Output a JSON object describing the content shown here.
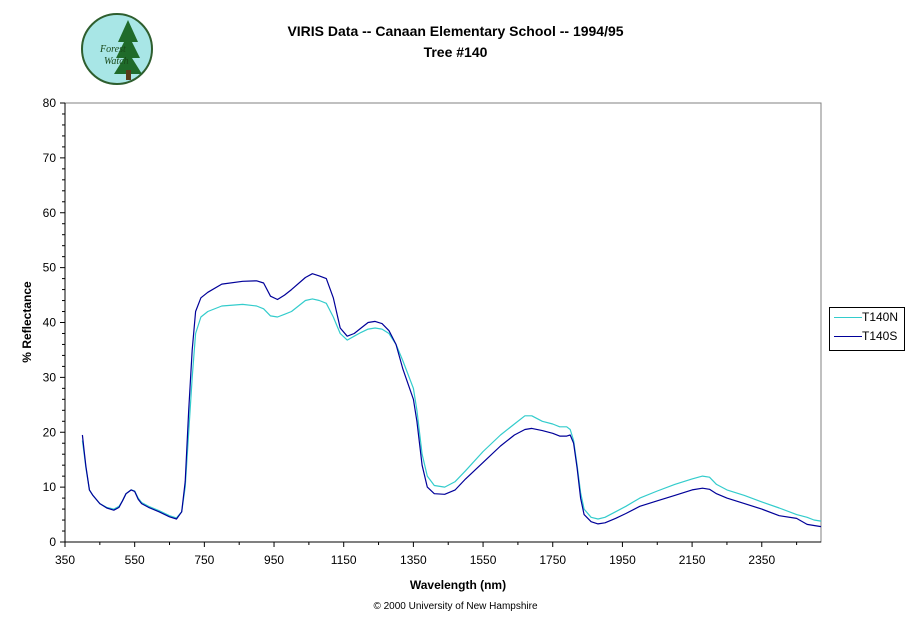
{
  "logo": {
    "text_line1": "Forest",
    "text_line2": "Watch"
  },
  "copyright": "© 2000 University of New Hampshire",
  "colors": {
    "T140N": "#33cccc",
    "T140S": "#000099"
  },
  "chart_data": {
    "type": "line",
    "title": "VIRIS Data -- Canaan Elementary School -- 1994/95",
    "subtitle": "Tree #140",
    "xlabel": "Wavelength (nm)",
    "ylabel": "% Reflectance",
    "xlim": [
      350,
      2520
    ],
    "ylim": [
      0,
      80
    ],
    "xticks": [
      350,
      550,
      750,
      950,
      1150,
      1350,
      1550,
      1750,
      1950,
      2150,
      2350
    ],
    "yticks": [
      0,
      10,
      20,
      30,
      40,
      50,
      60,
      70,
      80
    ],
    "grid": false,
    "legend_position": "right",
    "series": [
      {
        "name": "T140N",
        "x": [
          400,
          405,
          410,
          420,
          430,
          450,
          470,
          490,
          505,
          515,
          525,
          540,
          550,
          560,
          570,
          590,
          620,
          650,
          670,
          685,
          695,
          705,
          715,
          725,
          740,
          760,
          800,
          860,
          900,
          920,
          940,
          960,
          980,
          1000,
          1040,
          1060,
          1080,
          1100,
          1120,
          1140,
          1160,
          1180,
          1200,
          1220,
          1240,
          1260,
          1280,
          1300,
          1320,
          1350,
          1360,
          1375,
          1390,
          1410,
          1440,
          1470,
          1500,
          1550,
          1600,
          1640,
          1670,
          1690,
          1720,
          1750,
          1770,
          1790,
          1800,
          1810,
          1820,
          1830,
          1840,
          1860,
          1880,
          1900,
          1930,
          1960,
          2000,
          2050,
          2100,
          2150,
          2180,
          2200,
          2220,
          2250,
          2300,
          2350,
          2400,
          2450,
          2480,
          2500,
          2520
        ],
        "y": [
          18.5,
          16.0,
          13.5,
          9.5,
          8.5,
          7.0,
          6.3,
          6.0,
          6.5,
          7.5,
          8.8,
          9.5,
          9.3,
          8.0,
          7.2,
          6.5,
          5.7,
          4.8,
          4.4,
          5.5,
          10.0,
          20.0,
          30.0,
          38.0,
          41.0,
          42.0,
          43.0,
          43.3,
          43.0,
          42.5,
          41.2,
          41.0,
          41.5,
          42.0,
          44.0,
          44.3,
          44.0,
          43.5,
          41.0,
          38.0,
          36.8,
          37.5,
          38.2,
          38.8,
          39.0,
          38.8,
          38.0,
          36.0,
          33.0,
          28.0,
          24.0,
          16.0,
          12.0,
          10.3,
          10.0,
          11.0,
          13.0,
          16.5,
          19.5,
          21.5,
          23.0,
          23.0,
          22.0,
          21.5,
          21.0,
          21.0,
          20.5,
          18.5,
          14.0,
          9.0,
          6.0,
          4.5,
          4.2,
          4.5,
          5.5,
          6.5,
          8.0,
          9.3,
          10.5,
          11.5,
          12.0,
          11.8,
          10.5,
          9.5,
          8.5,
          7.3,
          6.2,
          5.0,
          4.5,
          4.0,
          3.8
        ]
      },
      {
        "name": "T140S",
        "x": [
          400,
          405,
          410,
          420,
          430,
          450,
          470,
          490,
          505,
          515,
          525,
          540,
          550,
          560,
          570,
          590,
          620,
          650,
          670,
          685,
          695,
          705,
          715,
          725,
          740,
          760,
          800,
          860,
          900,
          920,
          940,
          960,
          980,
          1000,
          1040,
          1060,
          1080,
          1100,
          1120,
          1140,
          1160,
          1180,
          1200,
          1220,
          1240,
          1260,
          1280,
          1300,
          1320,
          1350,
          1360,
          1375,
          1390,
          1410,
          1440,
          1470,
          1500,
          1550,
          1600,
          1640,
          1670,
          1690,
          1720,
          1750,
          1770,
          1790,
          1800,
          1810,
          1820,
          1830,
          1840,
          1860,
          1880,
          1900,
          1930,
          1960,
          2000,
          2050,
          2100,
          2150,
          2180,
          2200,
          2220,
          2250,
          2300,
          2350,
          2400,
          2450,
          2480,
          2500,
          2520
        ],
        "y": [
          19.5,
          16.5,
          13.8,
          9.5,
          8.5,
          7.0,
          6.2,
          5.8,
          6.3,
          7.5,
          8.8,
          9.5,
          9.2,
          7.8,
          7.0,
          6.3,
          5.5,
          4.6,
          4.2,
          5.5,
          11.0,
          24.0,
          35.0,
          42.0,
          44.5,
          45.5,
          47.0,
          47.5,
          47.6,
          47.2,
          44.8,
          44.2,
          45.0,
          46.0,
          48.2,
          48.9,
          48.5,
          48.0,
          44.5,
          39.0,
          37.5,
          38.0,
          39.0,
          40.0,
          40.2,
          39.8,
          38.5,
          36.0,
          31.5,
          26.0,
          22.0,
          14.0,
          10.0,
          8.8,
          8.7,
          9.5,
          11.5,
          14.5,
          17.5,
          19.5,
          20.5,
          20.7,
          20.3,
          19.8,
          19.3,
          19.3,
          19.5,
          18.0,
          13.5,
          8.0,
          5.0,
          3.7,
          3.3,
          3.5,
          4.3,
          5.2,
          6.5,
          7.5,
          8.5,
          9.5,
          9.8,
          9.6,
          8.8,
          8.0,
          7.0,
          6.0,
          4.8,
          4.3,
          3.2,
          3.0,
          2.8
        ]
      }
    ]
  }
}
